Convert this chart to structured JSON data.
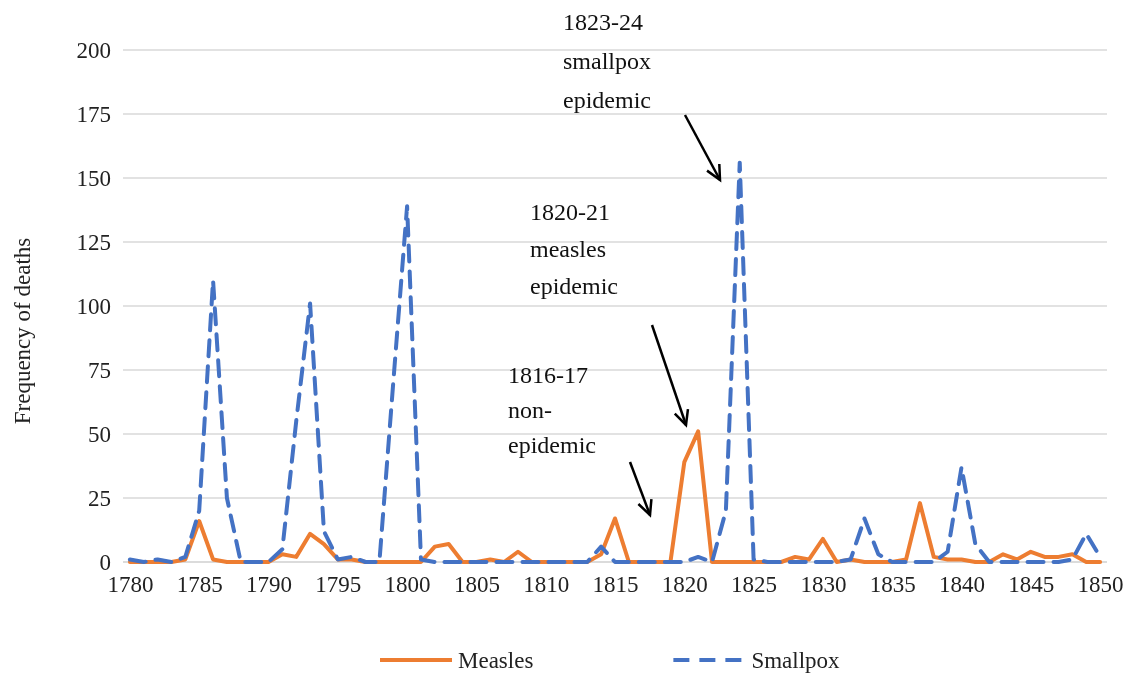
{
  "chart_data": {
    "type": "line",
    "ylabel": "Frequency of deaths",
    "categories": [
      "1780",
      null,
      null,
      null,
      null,
      "1785",
      null,
      null,
      null,
      null,
      "1790",
      null,
      null,
      null,
      null,
      "1795",
      null,
      null,
      null,
      null,
      "1800",
      null,
      null,
      null,
      null,
      "1805",
      null,
      null,
      null,
      null,
      "1810",
      null,
      null,
      null,
      null,
      "1815",
      null,
      null,
      null,
      null,
      "1820",
      null,
      null,
      null,
      null,
      "1825",
      null,
      null,
      null,
      null,
      "1830",
      null,
      null,
      null,
      null,
      "1835",
      null,
      null,
      null,
      null,
      "1840",
      null,
      null,
      null,
      null,
      "1845",
      null,
      null,
      null,
      null,
      "1850"
    ],
    "series": [
      {
        "name": "Measles",
        "color": "#ed7d31",
        "line_style": "solid",
        "values": [
          0,
          0,
          0,
          0,
          1,
          16,
          1,
          0,
          0,
          0,
          0,
          3,
          2,
          11,
          7,
          1,
          1,
          0,
          0,
          0,
          0,
          0,
          6,
          7,
          0,
          0,
          1,
          0,
          4,
          0,
          0,
          0,
          0,
          0,
          3,
          17,
          0,
          0,
          0,
          0,
          39,
          51,
          0,
          0,
          0,
          0,
          0,
          0,
          2,
          1,
          9,
          0,
          1,
          0,
          0,
          0,
          1,
          23,
          2,
          1,
          1,
          0,
          0,
          3,
          1,
          4,
          2,
          2,
          3,
          0,
          0
        ]
      },
      {
        "name": "Smallpox",
        "color": "#4472c4",
        "line_style": "dashed",
        "values": [
          1,
          0,
          1,
          0,
          2,
          20,
          110,
          25,
          0,
          0,
          0,
          5,
          55,
          101,
          12,
          1,
          2,
          0,
          0,
          70,
          139,
          1,
          0,
          0,
          0,
          0,
          0,
          0,
          0,
          0,
          0,
          0,
          0,
          0,
          6,
          0,
          0,
          0,
          0,
          0,
          0,
          2,
          0,
          20,
          156,
          1,
          0,
          0,
          0,
          0,
          0,
          0,
          1,
          17,
          3,
          0,
          0,
          0,
          0,
          4,
          37,
          7,
          0,
          0,
          0,
          0,
          0,
          0,
          1,
          11,
          2
        ]
      }
    ],
    "ylim": [
      0,
      200
    ],
    "yticks": [
      0,
      25,
      50,
      75,
      100,
      125,
      150,
      175,
      200
    ],
    "grid": "y",
    "legend": "bottom",
    "annotations": [
      "1823-24\nsmallpox\nepidemic",
      "1820-21\nmeasles\nepidemic",
      "1816-17\nnon-\nepidemic"
    ]
  }
}
